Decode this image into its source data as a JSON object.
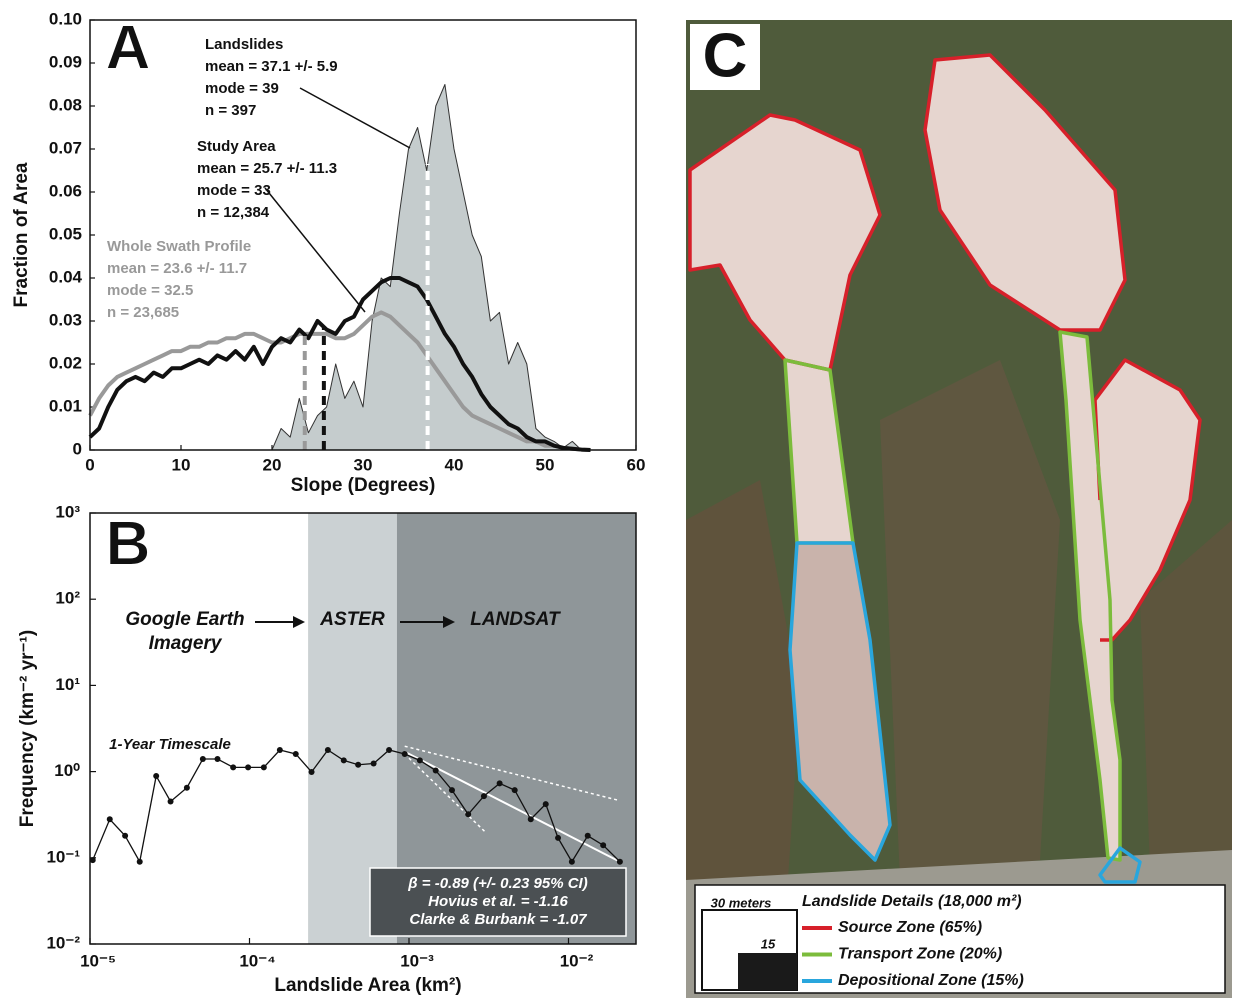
{
  "chart_data": [
    {
      "type": "line",
      "panel_label": "A",
      "xlabel": "Slope (Degrees)",
      "ylabel": "Fraction of Area",
      "x": [
        0,
        1,
        2,
        3,
        4,
        5,
        6,
        7,
        8,
        9,
        10,
        11,
        12,
        13,
        14,
        15,
        16,
        17,
        18,
        19,
        20,
        21,
        22,
        23,
        24,
        25,
        26,
        27,
        28,
        29,
        30,
        31,
        32,
        33,
        34,
        35,
        36,
        37,
        38,
        39,
        40,
        41,
        42,
        43,
        44,
        45,
        46,
        47,
        48,
        49,
        50,
        51,
        52,
        53,
        54,
        55
      ],
      "series": [
        {
          "name": "Landslides",
          "color": "#c5cccd",
          "fill": true,
          "mean": 37.1,
          "mean_color": "#ffffff",
          "stats": [
            "mean = 37.1 +/- 5.9",
            "mode = 39",
            "n = 397"
          ],
          "values": [
            null,
            null,
            null,
            null,
            null,
            null,
            null,
            null,
            null,
            null,
            null,
            null,
            null,
            null,
            null,
            null,
            null,
            null,
            null,
            null,
            0,
            0.005,
            0.003,
            0.012,
            0.004,
            0.008,
            0.01,
            0.02,
            0.012,
            0.016,
            0.01,
            0.03,
            0.04,
            0.038,
            0.055,
            0.07,
            0.075,
            0.065,
            0.08,
            0.085,
            0.07,
            0.06,
            0.05,
            0.045,
            0.03,
            0.032,
            0.02,
            0.025,
            0.02,
            0.005,
            0.003,
            0.002,
            0.0005,
            0.002,
            0,
            null
          ]
        },
        {
          "name": "Whole Swath Profile",
          "color": "#999999",
          "mean": 23.6,
          "mean_color": "#999999",
          "stats": [
            "mean = 23.6 +/- 11.7",
            "mode = 32.5",
            "n = 23,685"
          ],
          "values": [
            0.008,
            0.012,
            0.015,
            0.017,
            0.018,
            0.019,
            0.02,
            0.021,
            0.022,
            0.023,
            0.023,
            0.024,
            0.024,
            0.025,
            0.025,
            0.026,
            0.026,
            0.027,
            0.027,
            0.026,
            0.025,
            0.025,
            0.026,
            0.027,
            0.027,
            0.027,
            0.027,
            0.026,
            0.026,
            0.027,
            0.029,
            0.031,
            0.032,
            0.031,
            0.029,
            0.027,
            0.025,
            0.022,
            0.019,
            0.016,
            0.013,
            0.01,
            0.008,
            0.007,
            0.006,
            0.005,
            0.004,
            0.003,
            0.002,
            0.002,
            0.001,
            0.001,
            0.0005,
            0.0003,
            0.0001,
            0
          ]
        },
        {
          "name": "Study Area",
          "color": "#111111",
          "mean": 25.7,
          "mean_color": "#111111",
          "stats": [
            "mean = 25.7 +/- 11.3",
            "mode = 33",
            "n = 12,384"
          ],
          "values": [
            0.003,
            0.005,
            0.01,
            0.014,
            0.016,
            0.017,
            0.016,
            0.018,
            0.017,
            0.019,
            0.019,
            0.02,
            0.021,
            0.02,
            0.022,
            0.021,
            0.023,
            0.021,
            0.024,
            0.02,
            0.024,
            0.026,
            0.025,
            0.028,
            0.026,
            0.03,
            0.028,
            0.027,
            0.03,
            0.031,
            0.035,
            0.037,
            0.039,
            0.04,
            0.04,
            0.039,
            0.038,
            0.035,
            0.031,
            0.027,
            0.024,
            0.02,
            0.017,
            0.013,
            0.01,
            0.008,
            0.006,
            0.005,
            0.003,
            0.002,
            0.002,
            0.001,
            0.0005,
            0.0003,
            0.0001,
            0
          ]
        }
      ],
      "xlim": [
        0,
        60
      ],
      "xticks": [
        0,
        10,
        20,
        30,
        40,
        50,
        60
      ],
      "ylim": [
        0,
        0.1
      ],
      "yticks": [
        0,
        0.01,
        0.02,
        0.03,
        0.04,
        0.05,
        0.06,
        0.07,
        0.08,
        0.09,
        {
          "value": 0.1,
          "label": "0.10"
        }
      ]
    },
    {
      "type": "line",
      "panel_label": "B",
      "xscale": "log",
      "yscale": "log",
      "xlabel": "Landslide Area (km²)",
      "ylabel": "Frequency (km⁻² yr⁻¹)",
      "x": [
        1.04e-05,
        1.33e-05,
        1.66e-05,
        2.05e-05,
        2.6e-05,
        3.2e-05,
        4.05e-05,
        5.1e-05,
        6.3e-05,
        7.9e-05,
        9.8e-05,
        0.000123,
        0.000155,
        0.000195,
        0.000245,
        0.00031,
        0.00039,
        0.00048,
        0.0006,
        0.00075,
        0.00094,
        0.00117,
        0.00147,
        0.00186,
        0.00235,
        0.00295,
        0.0037,
        0.0046,
        0.0058,
        0.0072,
        0.0086,
        0.0105,
        0.0132,
        0.0165,
        0.021
      ],
      "series": [
        {
          "name": "1-Year Timescale",
          "color": "#111111",
          "markers": true,
          "values": [
            0.094,
            0.28,
            0.18,
            0.09,
            0.89,
            0.45,
            0.65,
            1.4,
            1.4,
            1.12,
            1.12,
            1.12,
            1.78,
            1.6,
            0.99,
            1.78,
            1.35,
            1.2,
            1.24,
            1.78,
            1.6,
            1.35,
            1.03,
            0.61,
            0.32,
            0.52,
            0.73,
            0.61,
            0.28,
            0.42,
            0.17,
            0.09,
            0.18,
            0.14,
            0.09
          ]
        }
      ],
      "fit_lines": [
        {
          "x": [
            0.00094,
            0.021
          ],
          "y": [
            1.7,
            0.09
          ],
          "color": "#ffffff",
          "dashed": false
        },
        {
          "x": [
            0.00094,
            0.021
          ],
          "y": [
            1.97,
            0.46
          ],
          "color": "#ffffff",
          "dashed": true
        },
        {
          "x": [
            0.00094,
            0.003
          ],
          "y": [
            1.6,
            0.2
          ],
          "color": "#ffffff",
          "dashed": true
        }
      ],
      "shaded_regions": [
        {
          "from": 0.000233,
          "to": 0.00084,
          "color": "#cbd1d3",
          "label": "ASTER"
        },
        {
          "from": 0.00084,
          "to": 0.0265,
          "color": "#8f9699",
          "label": "LANDSAT"
        }
      ],
      "source_label": [
        "Google Earth",
        "Imagery"
      ],
      "stats_box": [
        "β = -0.89 (+/- 0.23 95% CI)",
        "Hovius et al. = -1.16",
        "Clarke & Burbank = -1.07"
      ],
      "xlim": [
        1e-05,
        0.0265
      ],
      "xticks": [
        {
          "value": 1e-05,
          "label": "10⁻⁵"
        },
        {
          "value": 0.0001,
          "label": "10⁻⁴"
        },
        {
          "value": 0.001,
          "label": "10⁻³"
        },
        {
          "value": 0.01,
          "label": "10⁻²"
        }
      ],
      "ylim": [
        0.01,
        1000
      ],
      "yticks": [
        {
          "value": 0.01,
          "label": "10⁻²"
        },
        {
          "value": 0.1,
          "label": "10⁻¹"
        },
        {
          "value": 1,
          "label": "10⁰"
        },
        {
          "value": 10,
          "label": "10¹"
        },
        {
          "value": 100,
          "label": "10²"
        },
        {
          "value": 1000,
          "label": "10³"
        }
      ]
    }
  ],
  "image_panel": {
    "label": "C",
    "scale_label": "30 meters",
    "scale_mid_label": "15",
    "legend_title": "Landslide Details (18,000 m²)",
    "legend": [
      {
        "name": "Source Zone (65%)",
        "color": "#d7202a"
      },
      {
        "name": "Transport Zone (20%)",
        "color": "#7cbc3c"
      },
      {
        "name": "Depositional Zone (15%)",
        "color": "#29a6dd"
      }
    ]
  }
}
